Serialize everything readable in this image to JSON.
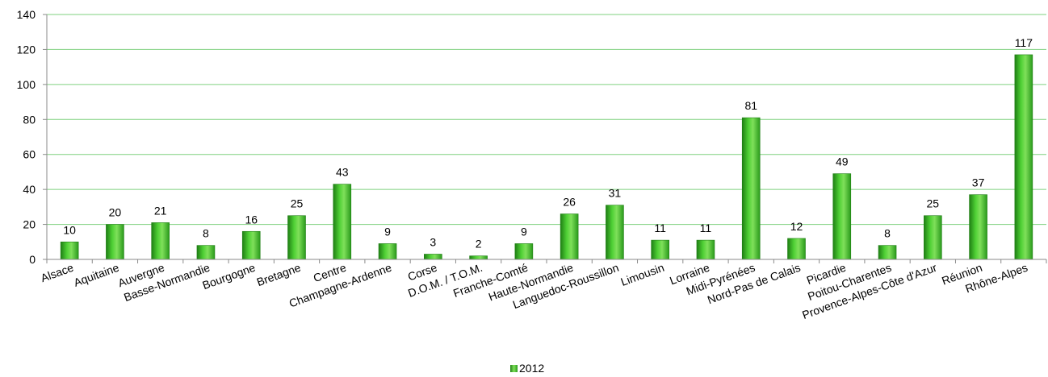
{
  "chart_data": {
    "type": "bar",
    "categories": [
      "Alsace",
      "Aquitaine",
      "Auvergne",
      "Basse-Normandie",
      "Bourgogne",
      "Bretagne",
      "Centre",
      "Champagne-Ardenne",
      "Corse",
      "D.O.M. / T.O.M.",
      "Franche-Comté",
      "Haute-Normandie",
      "Languedoc-Roussillon",
      "Limousin",
      "Lorraine",
      "Midi-Pyrénées",
      "Nord-Pas de Calais",
      "Picardie",
      "Poitou-Charentes",
      "Provence-Alpes-Côte d'Azur",
      "Réunion",
      "Rhône-Alpes"
    ],
    "series": [
      {
        "name": "2012",
        "values": [
          10,
          20,
          21,
          8,
          16,
          25,
          43,
          9,
          3,
          2,
          9,
          26,
          31,
          11,
          11,
          81,
          12,
          49,
          8,
          25,
          37,
          117
        ]
      }
    ],
    "data_labels": [
      "10",
      "20",
      "21",
      "8",
      "16",
      "25",
      "43",
      "9",
      "3",
      "2",
      "9",
      "26",
      "31",
      "11",
      "11",
      "81",
      "12",
      "49",
      "8",
      "25",
      "37",
      "117"
    ],
    "yticks": [
      "0",
      "20",
      "40",
      "60",
      "80",
      "100",
      "120",
      "140"
    ],
    "ylim": [
      0,
      140
    ],
    "grid": true,
    "legend": "bottom",
    "colors": {
      "bar": "#3fbf2a",
      "bar_light": "#7fe05a",
      "bar_dark": "#1f7f14",
      "grid": "#7fd07f",
      "axis": "#8a8a8a"
    }
  }
}
